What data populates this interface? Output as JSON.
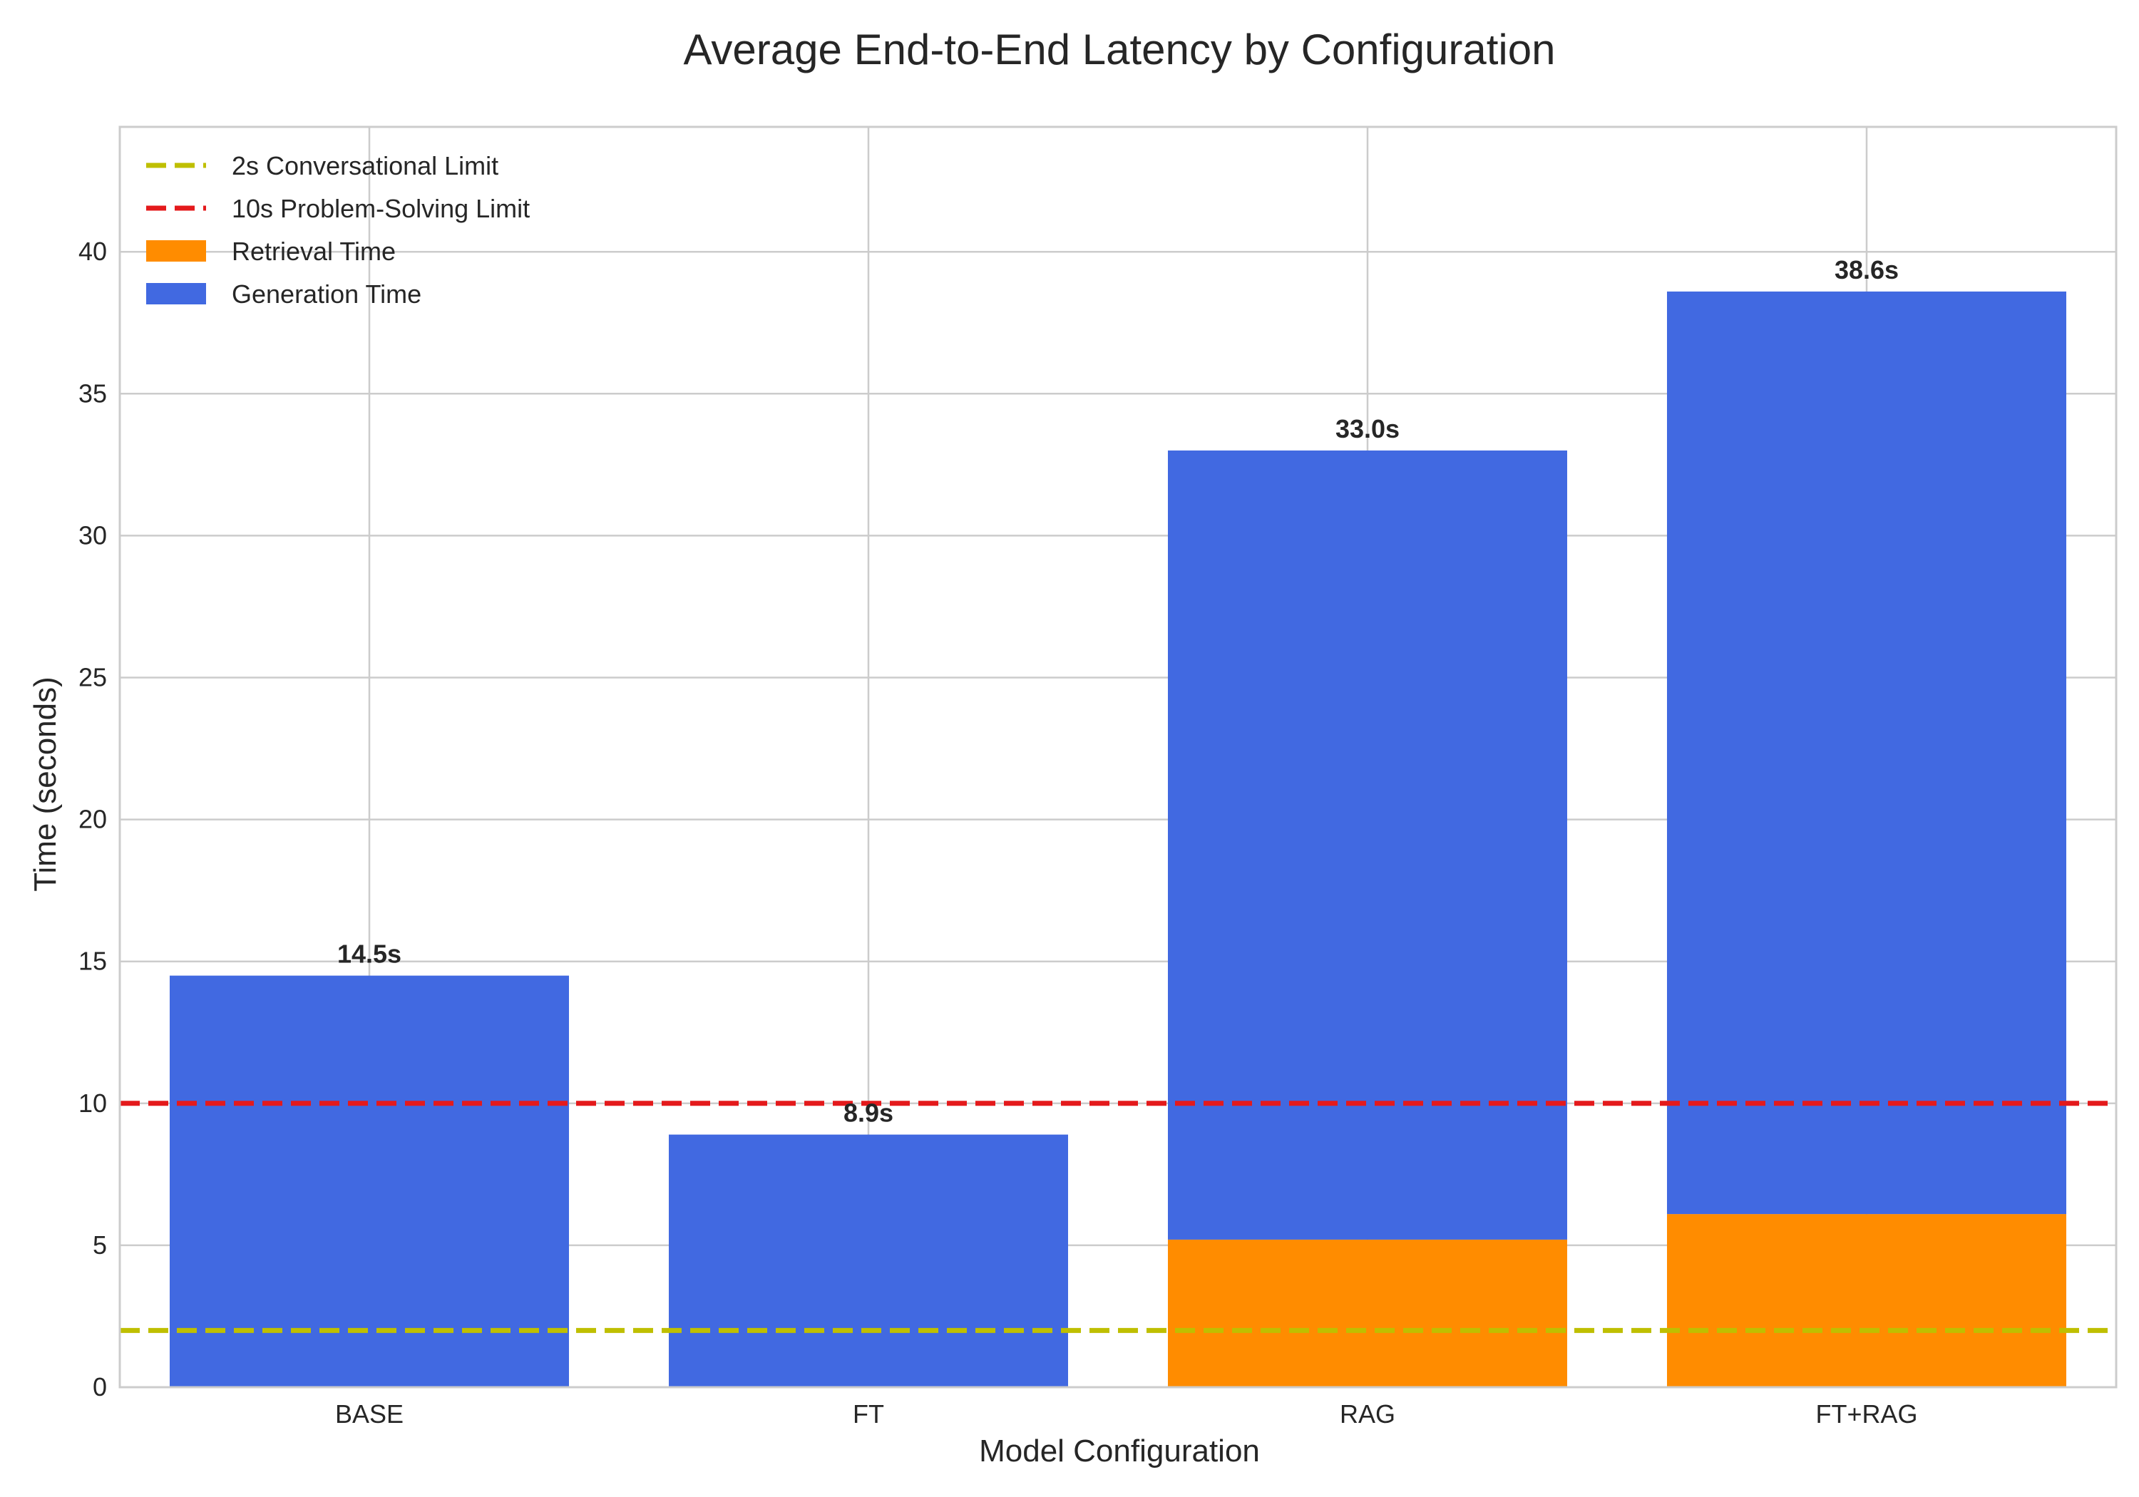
{
  "chart_data": {
    "type": "bar",
    "stacked": true,
    "title": "Average End-to-End Latency by Configuration",
    "xlabel": "Model Configuration",
    "ylabel": "Time (seconds)",
    "categories": [
      "BASE",
      "FT",
      "RAG",
      "FT+RAG"
    ],
    "series": [
      {
        "name": "Retrieval Time",
        "color": "#ff8c00",
        "values": [
          0,
          0,
          5.2,
          6.1
        ]
      },
      {
        "name": "Generation Time",
        "color": "#4169e1",
        "values": [
          14.5,
          8.9,
          27.8,
          32.5
        ]
      }
    ],
    "totals": [
      14.5,
      8.9,
      33.0,
      38.6
    ],
    "total_labels": [
      "14.5s",
      "8.9s",
      "33.0s",
      "38.6s"
    ],
    "reference_lines": [
      {
        "name": "2s Conversational Limit",
        "value": 2,
        "color": "#bfbf00",
        "style": "dashed"
      },
      {
        "name": "10s Problem-Solving Limit",
        "value": 10,
        "color": "#e41a1c",
        "style": "dashed"
      }
    ],
    "ylim": [
      0,
      44.4
    ],
    "yticks": [
      0,
      5,
      10,
      15,
      20,
      25,
      30,
      35,
      40
    ],
    "grid": true,
    "legend_position": "top-left"
  }
}
